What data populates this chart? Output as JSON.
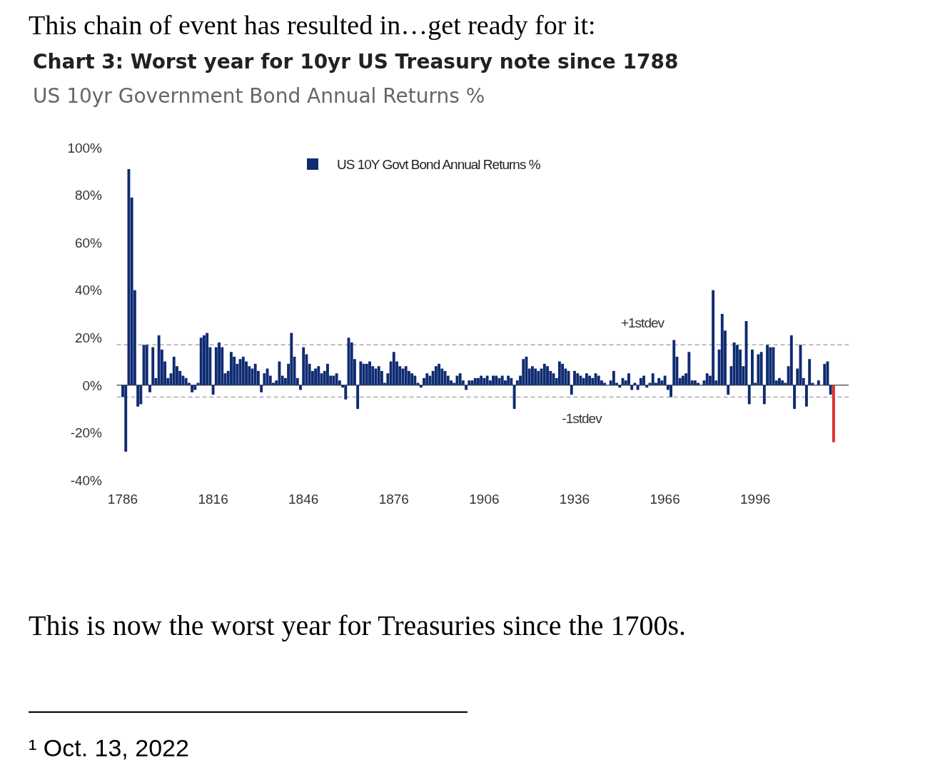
{
  "chart_data": {
    "type": "bar",
    "title": "Chart 3: Worst year for 10yr US Treasury note since 1788",
    "subtitle": "US 10yr Government Bond Annual Returns %",
    "annotations": [
      "This chain of event has resulted in…get ready for it:",
      "This is now the worst year for Treasuries since the 1700s.",
      "¹ Oct. 13, 2022"
    ],
    "xlim": [
      1784,
      2027
    ],
    "xticks": [
      1786,
      1816,
      1846,
      1876,
      1906,
      1936,
      1966,
      1996
    ],
    "ylim": [
      -40,
      100
    ],
    "yticks": [
      {
        "value": -40,
        "label": "-40%"
      },
      {
        "value": -20,
        "label": "-20%"
      },
      {
        "value": 0,
        "label": "0%"
      },
      {
        "value": 20,
        "label": "20%"
      },
      {
        "value": 40,
        "label": "40%"
      },
      {
        "value": 60,
        "label": "60%"
      },
      {
        "value": 80,
        "label": "80%"
      },
      {
        "value": 100,
        "label": "100%"
      }
    ],
    "legend": "top",
    "ref_lines": [
      {
        "axis": "y",
        "value": 17,
        "label": "+1stdev",
        "color": "#aaaaaa",
        "line_style": "dashed"
      },
      {
        "axis": "y",
        "value": -5,
        "label": "-1stdev",
        "color": "#aaaaaa",
        "line_style": "dashed"
      }
    ],
    "series": [
      {
        "name": "US 10Y Govt Bond Annual Returns %",
        "color": "#0f2b72",
        "x": [
          1786,
          1787,
          1788,
          1789,
          1790,
          1791,
          1792,
          1793,
          1794,
          1795,
          1796,
          1797,
          1798,
          1799,
          1800,
          1801,
          1802,
          1803,
          1804,
          1805,
          1806,
          1807,
          1808,
          1809,
          1810,
          1811,
          1812,
          1813,
          1814,
          1815,
          1816,
          1817,
          1818,
          1819,
          1820,
          1821,
          1822,
          1823,
          1824,
          1825,
          1826,
          1827,
          1828,
          1829,
          1830,
          1831,
          1832,
          1833,
          1834,
          1835,
          1836,
          1837,
          1838,
          1839,
          1840,
          1841,
          1842,
          1843,
          1844,
          1845,
          1846,
          1847,
          1848,
          1849,
          1850,
          1851,
          1852,
          1853,
          1854,
          1855,
          1856,
          1857,
          1858,
          1859,
          1860,
          1861,
          1862,
          1863,
          1864,
          1865,
          1866,
          1867,
          1868,
          1869,
          1870,
          1871,
          1872,
          1873,
          1874,
          1875,
          1876,
          1877,
          1878,
          1879,
          1880,
          1881,
          1882,
          1883,
          1884,
          1885,
          1886,
          1887,
          1888,
          1889,
          1890,
          1891,
          1892,
          1893,
          1894,
          1895,
          1896,
          1897,
          1898,
          1899,
          1900,
          1901,
          1902,
          1903,
          1904,
          1905,
          1906,
          1907,
          1908,
          1909,
          1910,
          1911,
          1912,
          1913,
          1914,
          1915,
          1916,
          1917,
          1918,
          1919,
          1920,
          1921,
          1922,
          1923,
          1924,
          1925,
          1926,
          1927,
          1928,
          1929,
          1930,
          1931,
          1932,
          1933,
          1934,
          1935,
          1936,
          1937,
          1938,
          1939,
          1940,
          1941,
          1942,
          1943,
          1944,
          1945,
          1946,
          1947,
          1948,
          1949,
          1950,
          1951,
          1952,
          1953,
          1954,
          1955,
          1956,
          1957,
          1958,
          1959,
          1960,
          1961,
          1962,
          1963,
          1964,
          1965,
          1966,
          1967,
          1968,
          1969,
          1970,
          1971,
          1972,
          1973,
          1974,
          1975,
          1976,
          1977,
          1978,
          1979,
          1980,
          1981,
          1982,
          1983,
          1984,
          1985,
          1986,
          1987,
          1988,
          1989,
          1990,
          1991,
          1992,
          1993,
          1994,
          1995,
          1996,
          1997,
          1998,
          1999,
          2000,
          2001,
          2002,
          2003,
          2004,
          2005,
          2006,
          2007,
          2008,
          2009,
          2010,
          2011,
          2012,
          2013,
          2014,
          2015,
          2016,
          2017,
          2018,
          2019,
          2020,
          2021
        ],
        "values": [
          -5,
          -28,
          91,
          79,
          40,
          -9,
          -8,
          17,
          17,
          -3,
          16,
          3,
          21,
          15,
          10,
          3,
          5,
          12,
          8,
          6,
          4,
          3,
          1,
          -3,
          -2,
          1,
          20,
          21,
          22,
          16,
          -4,
          16,
          18,
          16,
          5,
          6,
          14,
          12,
          9,
          11,
          12,
          10,
          8,
          7,
          9,
          6,
          -3,
          5,
          7,
          4,
          1,
          2,
          10,
          4,
          3,
          9,
          22,
          12,
          3,
          -2,
          16,
          13,
          9,
          6,
          7,
          8,
          5,
          6,
          9,
          4,
          4,
          5,
          2,
          -1,
          -6,
          20,
          18,
          11,
          -10,
          10,
          9,
          9,
          10,
          8,
          7,
          8,
          6,
          1,
          5,
          10,
          14,
          10,
          8,
          7,
          8,
          6,
          5,
          4,
          1,
          -1,
          3,
          5,
          4,
          6,
          8,
          9,
          7,
          6,
          4,
          2,
          1,
          4,
          5,
          2,
          -2,
          2,
          2,
          3,
          3,
          4,
          3,
          4,
          2,
          4,
          4,
          3,
          4,
          2,
          4,
          3,
          -10,
          2,
          4,
          11,
          12,
          7,
          8,
          7,
          6,
          7,
          9,
          8,
          6,
          5,
          3,
          10,
          9,
          7,
          6,
          -4,
          6,
          5,
          4,
          3,
          5,
          4,
          3,
          5,
          4,
          2,
          1,
          0,
          2,
          6,
          1,
          -1,
          3,
          2,
          5,
          -2,
          1,
          -2,
          3,
          4,
          -1,
          1,
          5,
          1,
          3,
          2,
          4,
          -2,
          -5,
          19,
          12,
          3,
          4,
          5,
          14,
          2,
          2,
          1,
          0,
          2,
          5,
          4,
          40,
          2,
          15,
          30,
          23,
          -4,
          8,
          18,
          17,
          15,
          8,
          27,
          -8,
          15,
          1,
          13,
          14,
          -8,
          17,
          16,
          16,
          2,
          3,
          2,
          1,
          8,
          21,
          -10,
          7,
          17,
          3,
          -9,
          11,
          1,
          0,
          2,
          0,
          9,
          10,
          -4
        ]
      },
      {
        "color": "#e0302a",
        "x": [
          2022
        ],
        "values": [
          -24
        ]
      }
    ]
  }
}
